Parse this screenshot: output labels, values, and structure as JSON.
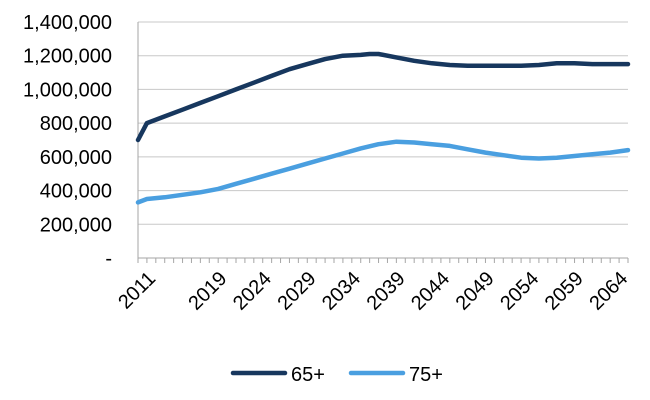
{
  "chart_data": {
    "type": "line",
    "title": "",
    "xlabel": "",
    "ylabel": "",
    "ylim": [
      0,
      1400000
    ],
    "yticks": [
      0,
      200000,
      400000,
      600000,
      800000,
      1000000,
      1200000,
      1400000
    ],
    "ytick_labels": [
      "-",
      "200,000",
      "400,000",
      "600,000",
      "800,000",
      "1,000,000",
      "1,200,000",
      "1,400,000"
    ],
    "xlim": [
      2011,
      2066
    ],
    "xticks": [
      2011,
      2019,
      2024,
      2029,
      2034,
      2039,
      2044,
      2049,
      2054,
      2059,
      2064
    ],
    "xtick_labels": [
      "2011",
      "2019",
      "2024",
      "2029",
      "2034",
      "2039",
      "2044",
      "2049",
      "2054",
      "2059",
      "2064"
    ],
    "grid": "horizontal",
    "legend_position": "bottom",
    "series": [
      {
        "name": "65+",
        "color": "#17375E",
        "x": [
          2011,
          2012,
          2014,
          2016,
          2018,
          2020,
          2022,
          2024,
          2026,
          2028,
          2030,
          2032,
          2034,
          2036,
          2037,
          2038,
          2040,
          2042,
          2044,
          2046,
          2048,
          2050,
          2052,
          2054,
          2056,
          2058,
          2060,
          2062,
          2064,
          2066
        ],
        "values": [
          700000,
          800000,
          840000,
          880000,
          920000,
          960000,
          1000000,
          1040000,
          1080000,
          1120000,
          1150000,
          1180000,
          1200000,
          1205000,
          1210000,
          1210000,
          1190000,
          1170000,
          1155000,
          1145000,
          1140000,
          1140000,
          1140000,
          1140000,
          1145000,
          1155000,
          1155000,
          1150000,
          1150000,
          1150000
        ]
      },
      {
        "name": "75+",
        "color": "#4A9FE0",
        "x": [
          2011,
          2012,
          2014,
          2016,
          2018,
          2020,
          2022,
          2024,
          2026,
          2028,
          2030,
          2032,
          2034,
          2036,
          2038,
          2040,
          2042,
          2044,
          2046,
          2048,
          2050,
          2052,
          2054,
          2056,
          2058,
          2060,
          2062,
          2064,
          2066
        ],
        "values": [
          330000,
          350000,
          360000,
          375000,
          390000,
          410000,
          440000,
          470000,
          500000,
          530000,
          560000,
          590000,
          620000,
          650000,
          675000,
          690000,
          685000,
          675000,
          665000,
          645000,
          625000,
          610000,
          595000,
          590000,
          595000,
          605000,
          615000,
          625000,
          640000
        ]
      }
    ]
  }
}
